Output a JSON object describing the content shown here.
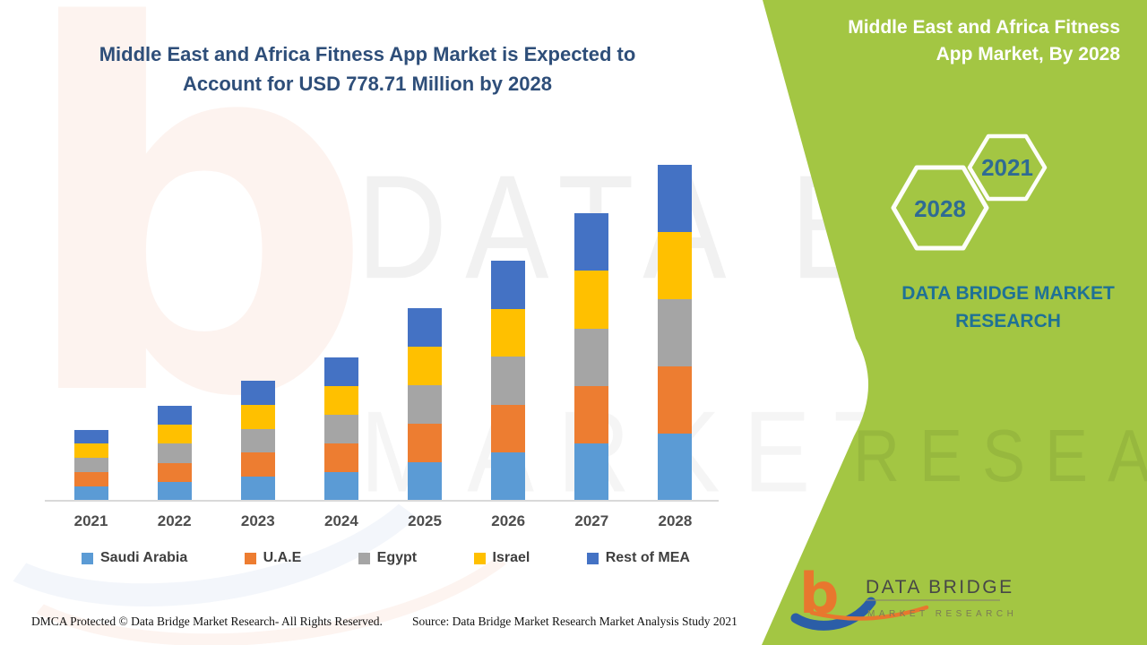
{
  "page": {
    "title_line1": "Middle East and Africa Fitness App Market is Expected to",
    "title_line2": "Account for USD 778.71 Million by 2028"
  },
  "panel": {
    "title_line1": "Middle East and Africa Fitness",
    "title_line2": "App Market, By 2028",
    "badge_back_year": "2028",
    "badge_front_year": "2021",
    "brand_line1": "DATA BRIDGE MARKET",
    "brand_line2": "RESEARCH"
  },
  "watermarks": {
    "side_monogram": "b",
    "chart_top": "DATA B",
    "chart_bottom": "MARKET",
    "panel_ghost": "RESEARCH"
  },
  "footer": {
    "dmca": "DMCA Protected © Data Bridge Market Research- All Rights Reserved.",
    "source": "Source: Data Bridge Market Research Market Analysis Study 2021"
  },
  "logo": {
    "monogram": "b",
    "name": "DATA BRIDGE",
    "tagline": "MARKET RESEARCH"
  },
  "colors": {
    "panel_green": "#A3C643",
    "title_navy": "#2E4E79",
    "brand_teal": "#1F7195",
    "hex_year_blue": "#2F6B93",
    "axis_gray": "#D9D9D9",
    "saudi_arabia": "#5B9BD5",
    "uae": "#ED7D31",
    "egypt": "#A5A5A5",
    "israel": "#FFC000",
    "rest_of_mea": "#4472C4",
    "logo_orange": "#E8772E",
    "logo_blue": "#2B5EA7"
  },
  "chart_data": {
    "type": "bar",
    "stacked": true,
    "title": "Middle East and Africa Fitness App Market is Expected to Account for USD 778.71 Million by 2028",
    "value_unit": "USD Million",
    "categories": [
      "2021",
      "2022",
      "2023",
      "2024",
      "2025",
      "2026",
      "2027",
      "2028"
    ],
    "series": [
      {
        "name": "Saudi Arabia",
        "color": "#5B9BD5",
        "values": [
          33.0,
          44.0,
          55.6,
          66.6,
          89.2,
          111.2,
          133.2,
          155.74
        ]
      },
      {
        "name": "U.A.E",
        "color": "#ED7D31",
        "values": [
          33.0,
          44.0,
          55.6,
          66.6,
          89.2,
          111.2,
          133.2,
          155.74
        ]
      },
      {
        "name": "Egypt",
        "color": "#A5A5A5",
        "values": [
          33.0,
          44.0,
          55.6,
          66.6,
          89.2,
          111.2,
          133.2,
          155.74
        ]
      },
      {
        "name": "Israel",
        "color": "#FFC000",
        "values": [
          33.0,
          44.0,
          55.6,
          66.6,
          89.2,
          111.2,
          133.2,
          155.74
        ]
      },
      {
        "name": "Rest of MEA",
        "color": "#4472C4",
        "values": [
          33.0,
          44.0,
          55.6,
          66.6,
          89.2,
          111.2,
          133.2,
          155.74
        ]
      }
    ],
    "totals": [
      165,
      220,
      278,
      333,
      446,
      556,
      666,
      778.71
    ],
    "xlabel": "",
    "ylabel": "",
    "ylim": [
      0,
      800
    ],
    "gridlines": false,
    "legend_position": "bottom"
  }
}
